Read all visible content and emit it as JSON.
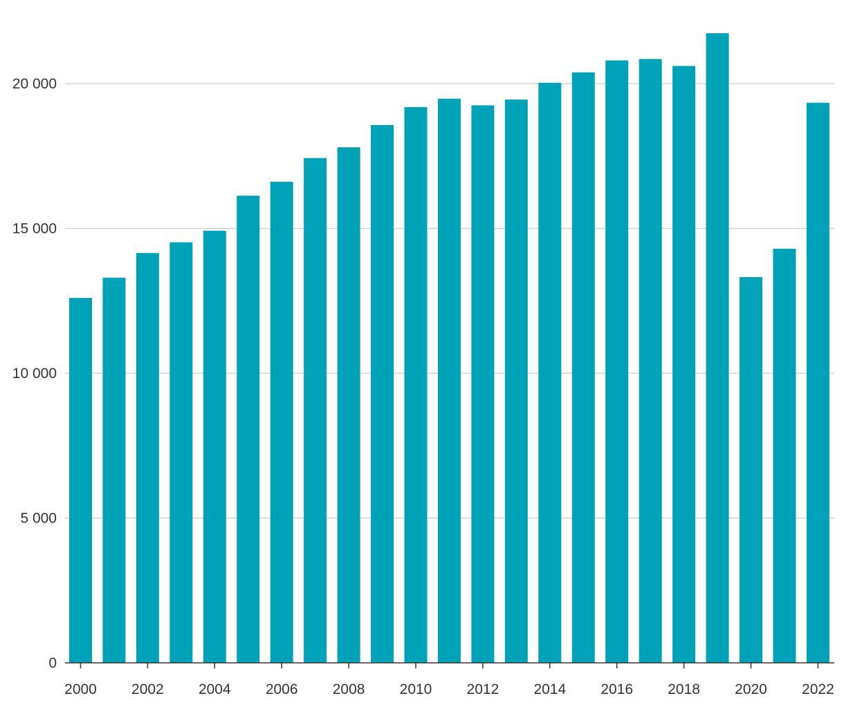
{
  "chart_data": {
    "type": "bar",
    "title": "",
    "xlabel": "",
    "ylabel": "",
    "categories": [
      "2000",
      "2001",
      "2002",
      "2003",
      "2004",
      "2005",
      "2006",
      "2007",
      "2008",
      "2009",
      "2010",
      "2011",
      "2012",
      "2013",
      "2014",
      "2015",
      "2016",
      "2017",
      "2018",
      "2019",
      "2020",
      "2021",
      "2022"
    ],
    "x_tick_labels": [
      "2000",
      "2002",
      "2004",
      "2006",
      "2008",
      "2010",
      "2012",
      "2014",
      "2016",
      "2018",
      "2020",
      "2022"
    ],
    "values": [
      12600,
      13300,
      14150,
      14520,
      14920,
      16130,
      16610,
      17430,
      17800,
      18570,
      19190,
      19480,
      19250,
      19450,
      20030,
      20390,
      20800,
      20850,
      20610,
      21740,
      13320,
      14300,
      19340
    ],
    "ylim": [
      0,
      22000
    ],
    "y_ticks": [
      0,
      5000,
      10000,
      15000,
      20000
    ],
    "y_tick_labels": [
      "0",
      "5 000",
      "10 000",
      "15 000",
      "20 000"
    ],
    "grid": true,
    "legend": "none",
    "colors": {
      "bar": "#00a2b8",
      "grid": "#cccccc",
      "axis": "#333333"
    }
  }
}
